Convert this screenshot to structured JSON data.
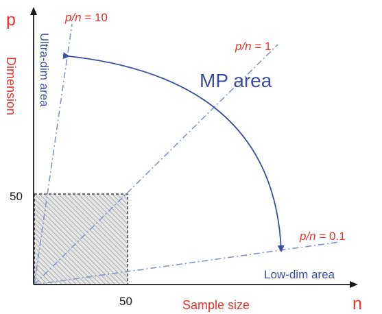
{
  "axes": {
    "y_symbol": "p",
    "y_label": "Dimension",
    "x_symbol": "n",
    "x_label": "Sample size",
    "tick_x": "50",
    "tick_y": "50"
  },
  "lines": [
    {
      "ratio_var": "p/n",
      "ratio_text": " = 10"
    },
    {
      "ratio_var": "p/n",
      "ratio_text": " = 1"
    },
    {
      "ratio_var": "p/n",
      "ratio_text": " = 0.1"
    }
  ],
  "regions": {
    "ultra": "Ultra-dim area",
    "mp": "MP area",
    "low": "Low-dim area"
  },
  "colors": {
    "axis_label": "#e8312a",
    "region_label": "#3a4fa0",
    "dashdot_line": "#7f95c4",
    "arc": "#3a4fa0"
  }
}
